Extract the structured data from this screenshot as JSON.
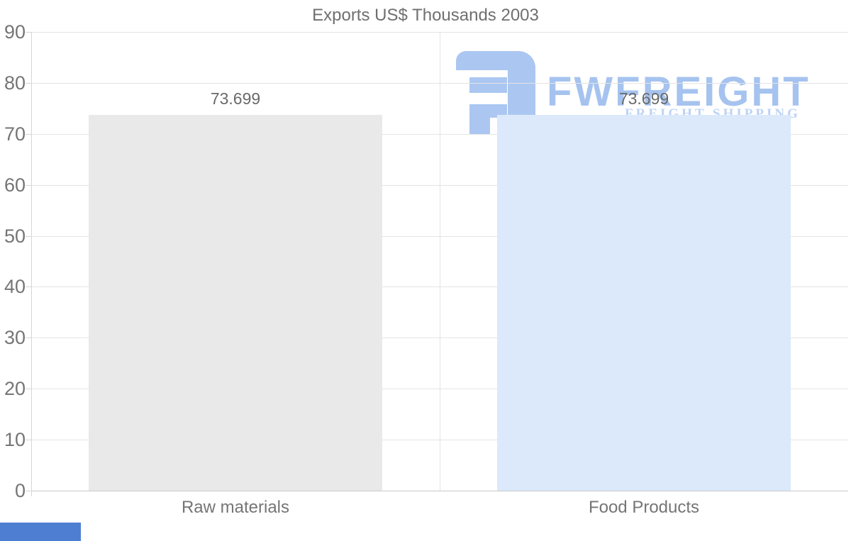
{
  "chart_data": {
    "type": "bar",
    "title": "Exports US$ Thousands 2003",
    "categories": [
      "Raw materials",
      "Food Products"
    ],
    "values": [
      73.699,
      73.699
    ],
    "value_labels": [
      "73.699",
      "73.699"
    ],
    "bar_colors": [
      "#e9e9e9",
      "#dbe9fb"
    ],
    "yticks": [
      0,
      10,
      20,
      30,
      40,
      50,
      60,
      70,
      80,
      90
    ],
    "ylim": [
      0,
      90
    ],
    "xlabel": "",
    "ylabel": "",
    "legend": "none",
    "grid": "horizontal gridlines every 10, vertical divider between category bands"
  },
  "watermark": {
    "brand": "FWFREIGHT",
    "tagline": "FREIGHT SHIPPING",
    "brand_color": "#a6c3ef",
    "icon_color": "#abc7f1",
    "tagline_color": "#bdd3f5"
  },
  "colors": {
    "title_text": "#6f6f6f",
    "axis_text": "#757575",
    "value_text": "#6a6a6a",
    "gridline": "#e4e4e4",
    "zero_line": "#c9c9c9",
    "axis_line": "#d6d6d6",
    "corner_strip": "#4d7ed2"
  }
}
